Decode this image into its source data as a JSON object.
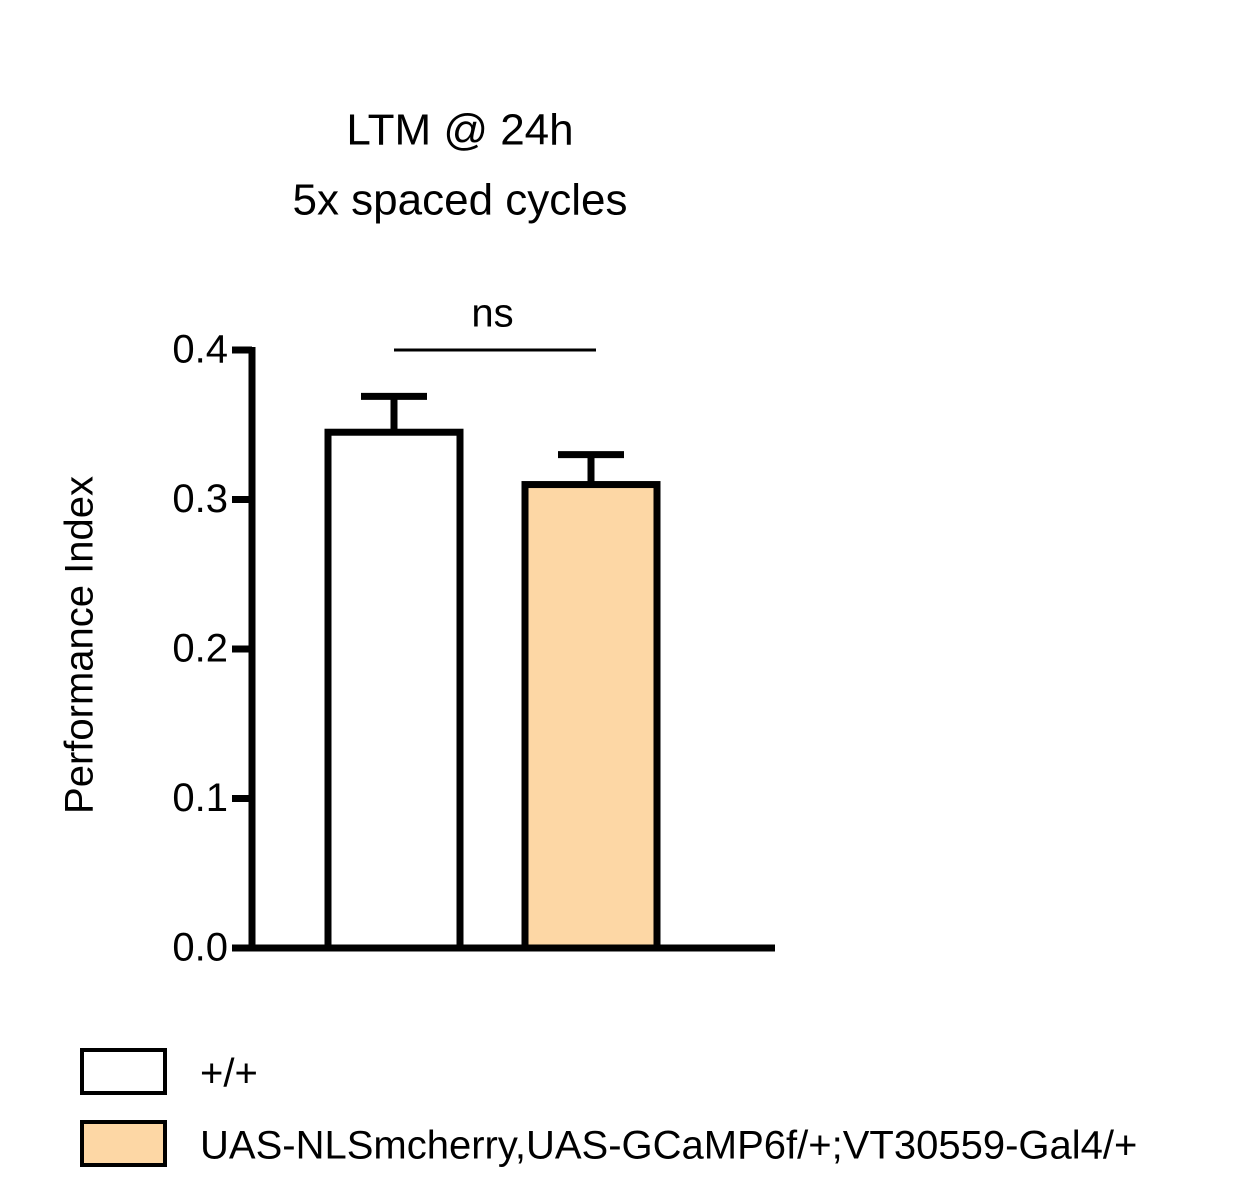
{
  "chart_data": {
    "type": "bar",
    "title": "LTM @ 24h",
    "subtitle": "5x spaced cycles",
    "y_label": "Performance Index",
    "categories": [
      null
    ],
    "series": [
      {
        "name": "+/+",
        "color": "#ffffff",
        "values": [
          0.345
        ],
        "errors": [
          0.024
        ]
      },
      {
        "name": "UAS-NLSmcherry,UAS-GCaMP6f/+;VT30559-Gal4/+",
        "color": "#fdd7a5",
        "values": [
          0.31
        ],
        "errors": [
          0.02
        ]
      }
    ],
    "ylim": [
      0,
      0.4
    ],
    "yticks": [
      {
        "value": 0,
        "label": "0.0"
      },
      0.1,
      0.2,
      0.3,
      0.4
    ],
    "annotation": "ns",
    "legend": "bottom-left"
  }
}
